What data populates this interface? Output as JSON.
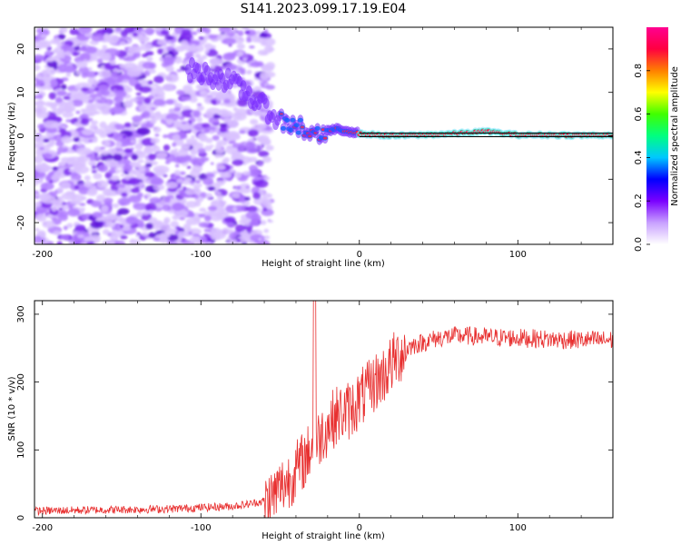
{
  "title": "S141.2023.099.17.19.E04",
  "chart_data": [
    {
      "type": "heatmap",
      "xlabel": "Height of straight line (km)",
      "ylabel": "Frequency (Hz)",
      "xlim": [
        -205,
        160
      ],
      "ylim": [
        -25,
        25
      ],
      "xticks": [
        -200,
        -100,
        0,
        100
      ],
      "yticks": [
        -20,
        -10,
        0,
        10,
        20
      ],
      "colorbar": {
        "label": "Normalized spectral amplitude",
        "range": [
          0,
          1
        ],
        "ticks": [
          "0.0",
          "0.2",
          "0.4",
          "0.6",
          "0.8"
        ],
        "colors": [
          "#ffffff",
          "#c8a0ff",
          "#7a00ff",
          "#0000ff",
          "#00c8ff",
          "#00ff80",
          "#40ff00",
          "#ffff00",
          "#ff8000",
          "#ff0040",
          "#ff0090"
        ]
      },
      "ridge": {
        "x": [
          -105,
          -95,
          -85,
          -75,
          -65,
          -55,
          -45,
          -35,
          -25,
          -15,
          -5,
          0,
          20,
          40,
          60,
          80,
          100,
          120,
          140,
          160
        ],
        "y": [
          15,
          14,
          13,
          11,
          8,
          5,
          2.5,
          1.5,
          0.5,
          1.5,
          1,
          0.5,
          0,
          0.2,
          0.5,
          1,
          0.2,
          0.2,
          0.1,
          0.2
        ]
      }
    },
    {
      "type": "line",
      "xlabel": "Height of straight line (km)",
      "ylabel": "SNR (10 * v/v)",
      "xlim": [
        -205,
        160
      ],
      "ylim": [
        0,
        320
      ],
      "xticks": [
        -200,
        -100,
        0,
        100
      ],
      "yticks": [
        0,
        100,
        200,
        300
      ],
      "color": "#e83030",
      "x": [
        -205,
        -180,
        -150,
        -120,
        -100,
        -80,
        -70,
        -60,
        -55,
        -50,
        -45,
        -40,
        -35,
        -32,
        -30,
        -28,
        -25,
        -20,
        -15,
        -10,
        -5,
        0,
        5,
        10,
        15,
        20,
        25,
        30,
        35,
        40,
        45,
        50,
        60,
        70,
        80,
        100,
        120,
        140,
        160
      ],
      "y": [
        10,
        11,
        12,
        13,
        15,
        17,
        20,
        25,
        30,
        45,
        55,
        70,
        85,
        95,
        110,
        100,
        120,
        135,
        150,
        155,
        160,
        175,
        185,
        200,
        210,
        225,
        240,
        250,
        255,
        258,
        262,
        265,
        268,
        268,
        266,
        265,
        263,
        262,
        262
      ]
    }
  ]
}
